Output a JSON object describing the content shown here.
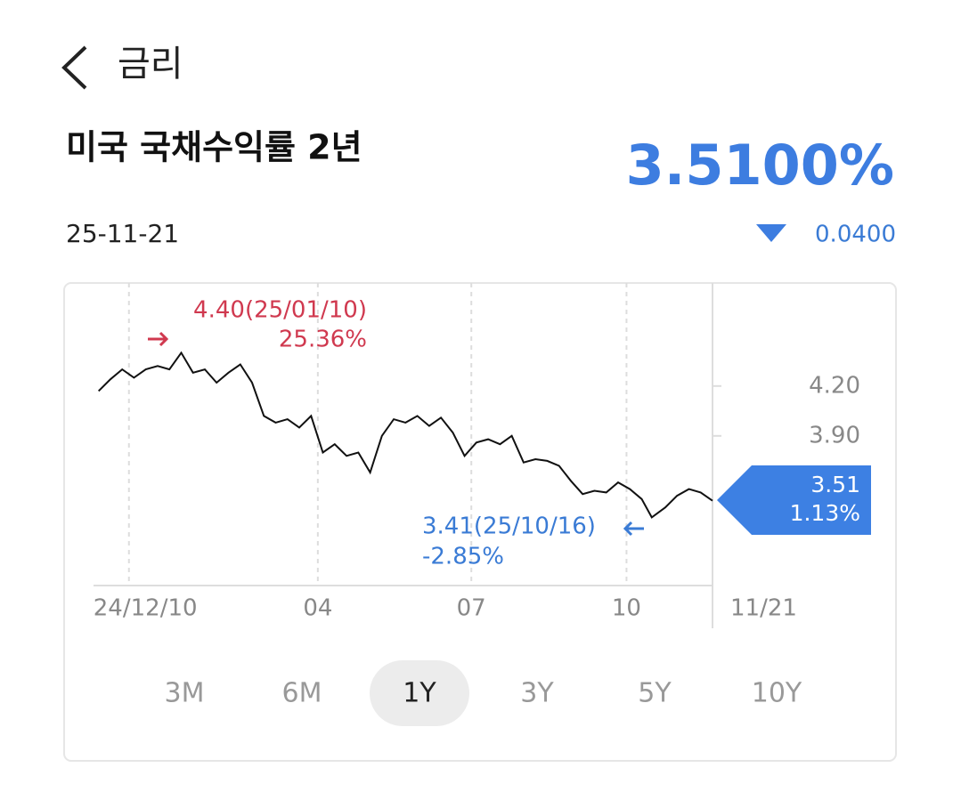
{
  "header": {
    "title": "금리"
  },
  "instrument": {
    "name": "미국 국채수익률 2년",
    "date": "25-11-21",
    "price": "3.5100%",
    "change": "0.0400"
  },
  "chart_data": {
    "type": "line",
    "x": [
      "24/11/22",
      "24/11/29",
      "24/12/06",
      "24/12/13",
      "24/12/20",
      "24/12/27",
      "25/01/03",
      "25/01/10",
      "25/01/17",
      "25/01/24",
      "25/01/31",
      "25/02/07",
      "25/02/14",
      "25/02/21",
      "25/02/28",
      "25/03/07",
      "25/03/14",
      "25/03/21",
      "25/03/28",
      "25/04/04",
      "25/04/11",
      "25/04/18",
      "25/04/25",
      "25/05/02",
      "25/05/09",
      "25/05/16",
      "25/05/23",
      "25/05/30",
      "25/06/06",
      "25/06/13",
      "25/06/20",
      "25/06/27",
      "25/07/04",
      "25/07/11",
      "25/07/18",
      "25/07/25",
      "25/08/01",
      "25/08/08",
      "25/08/15",
      "25/08/22",
      "25/08/29",
      "25/09/05",
      "25/09/12",
      "25/09/19",
      "25/09/26",
      "25/10/03",
      "25/10/10",
      "25/10/16",
      "25/10/24",
      "25/10/31",
      "25/11/07",
      "25/11/14",
      "25/11/21"
    ],
    "values": [
      4.17,
      4.24,
      4.3,
      4.25,
      4.3,
      4.32,
      4.3,
      4.4,
      4.28,
      4.3,
      4.22,
      4.28,
      4.33,
      4.22,
      4.02,
      3.98,
      4.0,
      3.95,
      4.02,
      3.8,
      3.85,
      3.78,
      3.8,
      3.68,
      3.9,
      4.0,
      3.98,
      4.02,
      3.96,
      4.01,
      3.92,
      3.78,
      3.86,
      3.88,
      3.85,
      3.9,
      3.74,
      3.76,
      3.75,
      3.72,
      3.63,
      3.55,
      3.57,
      3.56,
      3.62,
      3.58,
      3.52,
      3.41,
      3.47,
      3.54,
      3.58,
      3.56,
      3.51
    ],
    "color": "#111111",
    "xlim": [
      "24/11/19",
      "25/11/21"
    ],
    "xticks": [
      {
        "value": "24/12/10",
        "label": "24/12/10"
      },
      {
        "value": "25/04/01",
        "label": "04"
      },
      {
        "value": "25/07/01",
        "label": "07"
      },
      {
        "value": "25/10/01",
        "label": "10"
      },
      {
        "value": "25/11/21",
        "label": "11/21"
      }
    ],
    "ylim": [
      3.0,
      4.75
    ],
    "yticks": [
      {
        "value": 4.2,
        "label": "4.20"
      },
      {
        "value": 3.9,
        "label": "3.90"
      }
    ],
    "annotations": {
      "high": {
        "label": "4.40(25/01/10)",
        "change": "25.36%",
        "color": "#d0394f"
      },
      "low": {
        "label": "3.41(25/10/16)",
        "change": "-2.85%",
        "color": "#3a7bd5"
      },
      "last": {
        "label": "3.51",
        "change": "1.13%",
        "color": "#3d80e3"
      }
    }
  },
  "tabs": {
    "items": [
      "3M",
      "6M",
      "1Y",
      "3Y",
      "5Y",
      "10Y"
    ],
    "selected": 2
  }
}
